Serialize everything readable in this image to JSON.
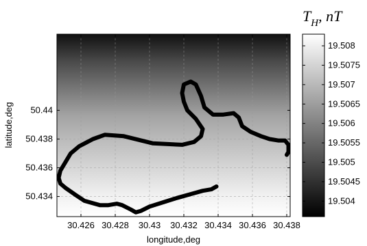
{
  "chart_data": {
    "type": "heatmap",
    "title": "",
    "xlabel": "longitude,deg",
    "ylabel": "latitude,deg",
    "xlim": [
      30.4246,
      30.4382
    ],
    "ylim": [
      50.4326,
      50.4453
    ],
    "x_ticks": [
      30.426,
      30.428,
      30.43,
      30.432,
      30.434,
      30.436,
      30.438
    ],
    "x_tick_labels": [
      "30.426",
      "30.428",
      "30.43",
      "30.432",
      "30.434",
      "30.436",
      "30.438"
    ],
    "y_ticks": [
      50.434,
      50.436,
      50.438,
      50.44
    ],
    "y_tick_labels": [
      "50.434",
      "50.436",
      "50.438",
      "50.44"
    ],
    "grid": true,
    "heatmap": {
      "direction": "vertical",
      "value_low": 19.5078,
      "value_high": 19.5038,
      "colormap": "gray"
    },
    "colorbar": {
      "title": "T_H, nT",
      "title_main": "T",
      "title_sub": "H",
      "title_rest": ", nT",
      "range": [
        19.5036,
        19.5083
      ],
      "ticks": [
        19.504,
        19.5045,
        19.505,
        19.5055,
        19.506,
        19.5065,
        19.507,
        19.5075,
        19.508
      ],
      "tick_labels": [
        "19.504",
        "19.5045",
        "19.505",
        "19.5055",
        "19.506",
        "19.5065",
        "19.507",
        "19.5075",
        "19.508"
      ]
    },
    "track": {
      "color": "#000000",
      "points": [
        [
          30.4339,
          50.4347
        ],
        [
          30.4336,
          50.4345
        ],
        [
          30.4331,
          50.4344
        ],
        [
          30.4325,
          50.4342
        ],
        [
          30.4316,
          50.4339
        ],
        [
          30.4308,
          50.4336
        ],
        [
          30.43,
          50.4333
        ],
        [
          30.4295,
          50.433
        ],
        [
          30.4292,
          50.4329
        ],
        [
          30.4289,
          50.4331
        ],
        [
          30.4284,
          50.4334
        ],
        [
          30.4281,
          50.4335
        ],
        [
          30.4276,
          50.4334
        ],
        [
          30.4271,
          50.4334
        ],
        [
          30.4262,
          50.4337
        ],
        [
          30.4257,
          50.4341
        ],
        [
          30.4251,
          50.4346
        ],
        [
          30.4248,
          50.4349
        ],
        [
          30.4247,
          50.4353
        ],
        [
          30.4248,
          50.4358
        ],
        [
          30.4251,
          50.4364
        ],
        [
          30.4254,
          50.437
        ],
        [
          30.4259,
          50.4375
        ],
        [
          30.4267,
          50.438
        ],
        [
          30.4274,
          50.4383
        ],
        [
          30.4285,
          50.4382
        ],
        [
          30.4302,
          50.4377
        ],
        [
          30.4319,
          50.4376
        ],
        [
          30.4326,
          50.4378
        ],
        [
          30.433,
          50.4382
        ],
        [
          30.4331,
          50.4387
        ],
        [
          30.4327,
          50.4394
        ],
        [
          30.4322,
          50.44
        ],
        [
          30.432,
          50.4406
        ],
        [
          30.4319,
          50.4412
        ],
        [
          30.432,
          50.4418
        ],
        [
          30.4324,
          50.442
        ],
        [
          30.4327,
          50.4418
        ],
        [
          30.433,
          50.441
        ],
        [
          30.4332,
          50.4402
        ],
        [
          30.4337,
          50.4397
        ],
        [
          30.4343,
          50.4397
        ],
        [
          30.4349,
          50.4398
        ],
        [
          30.4352,
          50.4395
        ],
        [
          30.4354,
          50.4389
        ],
        [
          30.4359,
          50.4385
        ],
        [
          30.4365,
          50.4382
        ],
        [
          30.437,
          50.438
        ],
        [
          30.4375,
          50.4379
        ],
        [
          30.4379,
          50.4379
        ],
        [
          30.4381,
          50.4376
        ],
        [
          30.4381,
          50.4371
        ],
        [
          30.438,
          50.4369
        ]
      ]
    }
  }
}
